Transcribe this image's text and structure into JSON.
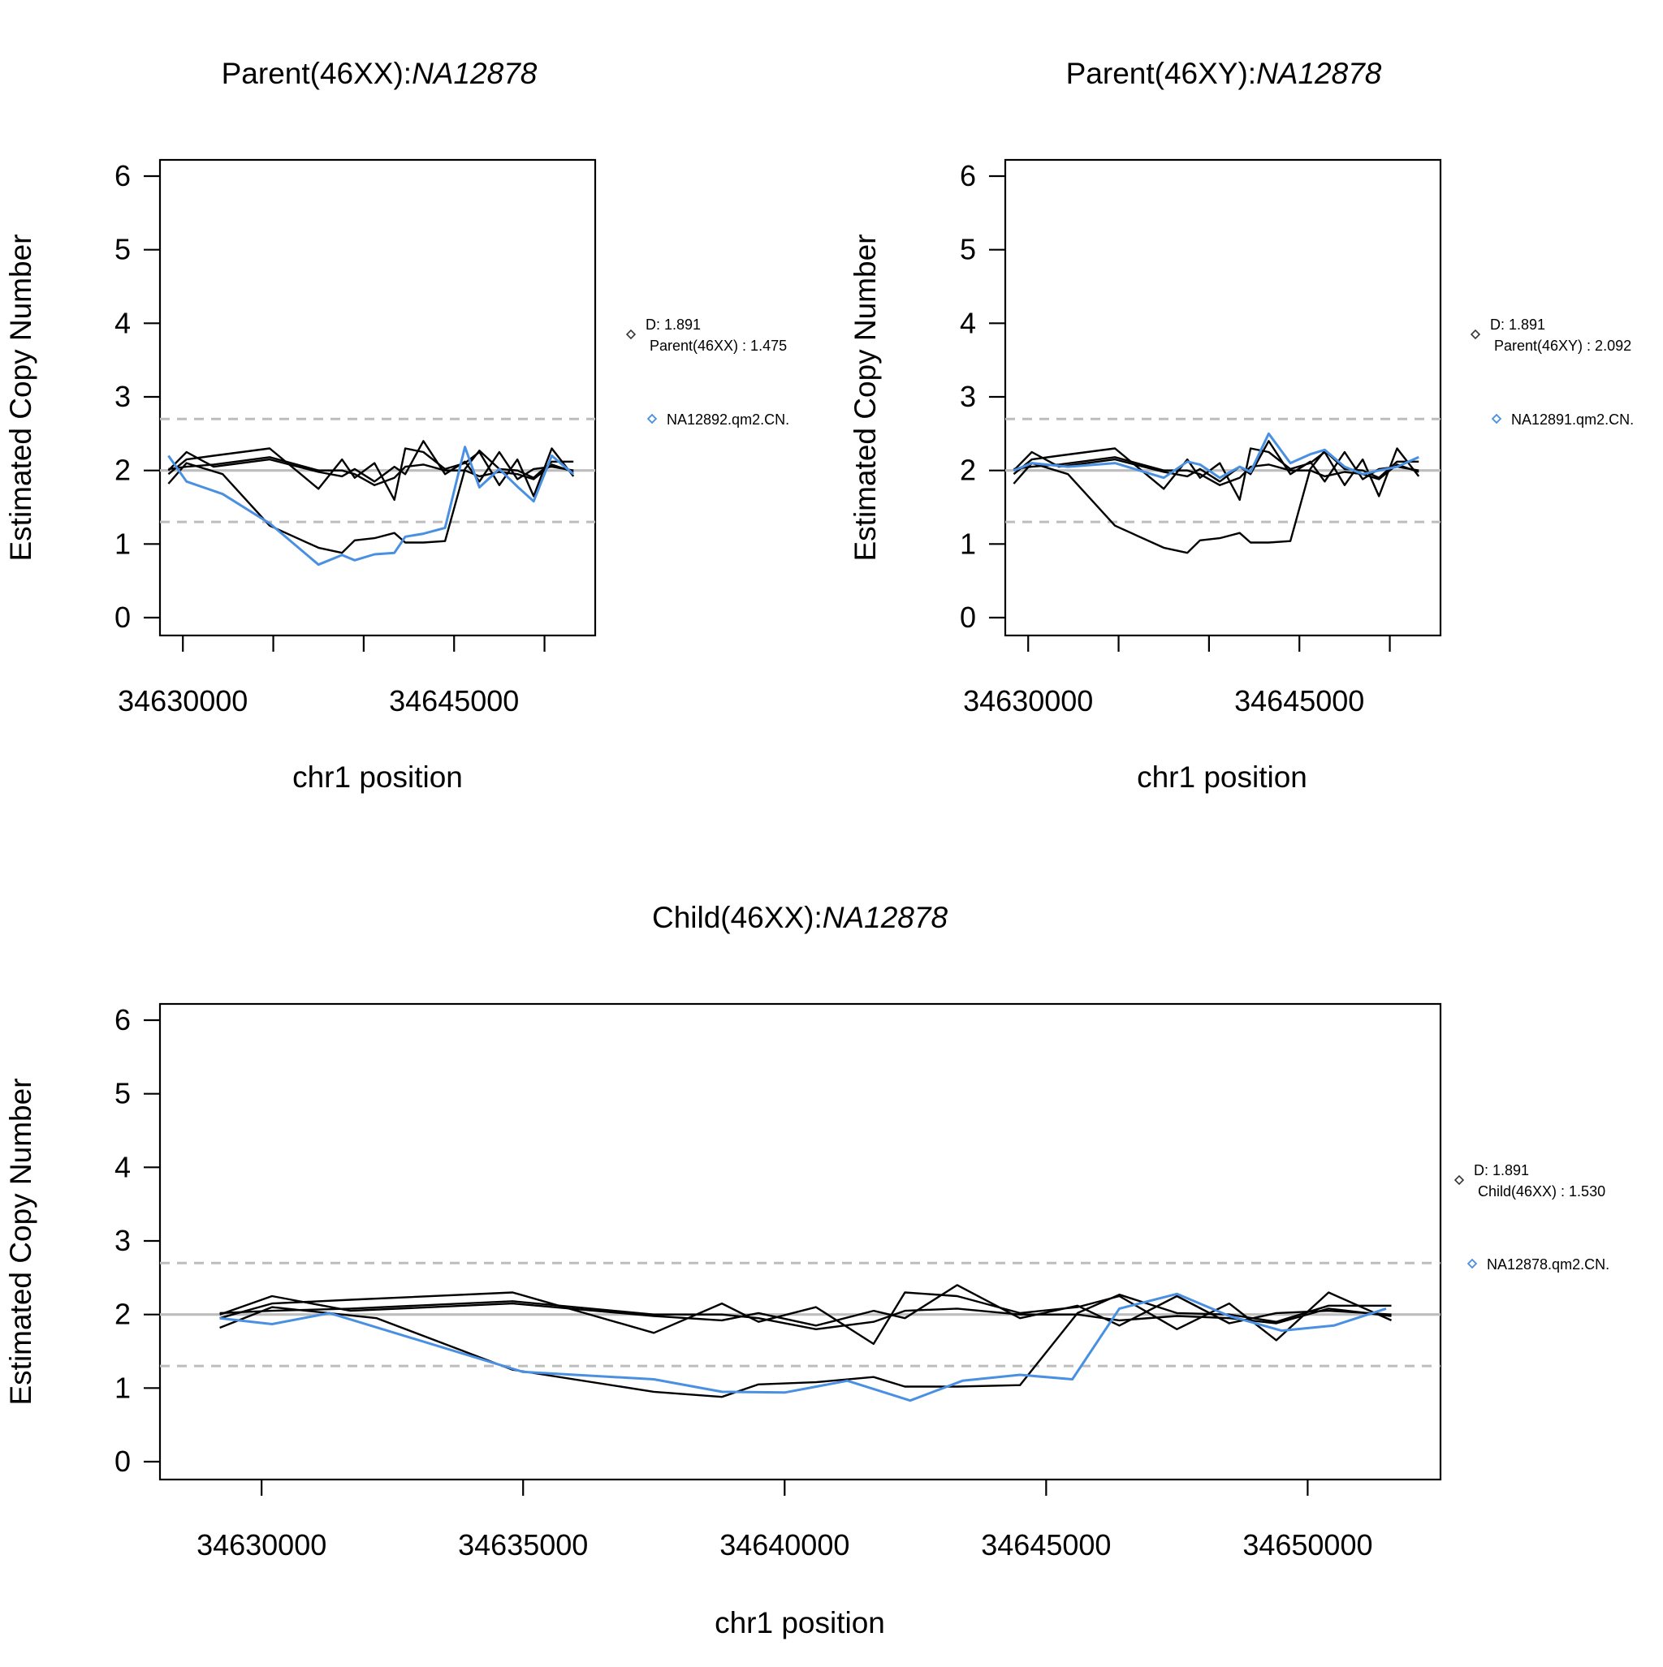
{
  "colors": {
    "control": "#000000",
    "sample": "#4a90e2",
    "reference": "#bdbdbd",
    "marker_dark": "#333333"
  },
  "chart_data": [
    {
      "type": "line",
      "title_plain": "Parent(46XX):",
      "title_italic": "NA12878",
      "xlabel": "chr1 position",
      "ylabel": "Estimated Copy Number",
      "xlim": [
        34627700,
        34652400
      ],
      "ylim": [
        0,
        6
      ],
      "xticks": [
        34630000,
        34635000,
        34640000,
        34645000,
        34650000
      ],
      "xtick_labels": [
        "34630000",
        "34645000"
      ],
      "yticks": [
        0,
        1,
        2,
        3,
        4,
        5,
        6
      ],
      "ref_line": 2,
      "thresholds": [
        1.3,
        2.7
      ],
      "legend": {
        "d_label": "D: 1.891",
        "d_line2": "Parent(46XX) : 1.475",
        "sample_label": "NA12892.qm2.CN."
      },
      "controls": [
        {
          "x": [
            34629200,
            34630200,
            34631700,
            34634800,
            34637500,
            34638800,
            34639500,
            34640600,
            34641700,
            34642300,
            34643300,
            34644500,
            34645600,
            34646400,
            34647500,
            34648500,
            34649400,
            34650400,
            34651600
          ],
          "y": [
            1.95,
            2.15,
            2.2,
            2.3,
            1.75,
            2.15,
            1.9,
            2.1,
            1.6,
            2.3,
            2.25,
            2.02,
            2.1,
            2.25,
            1.8,
            2.15,
            1.65,
            2.3,
            1.92
          ]
        },
        {
          "x": [
            34629200,
            34630200,
            34632200,
            34634800,
            34637500,
            34638800,
            34639500,
            34640600,
            34641700,
            34642300,
            34643300,
            34644500,
            34645600,
            34646400,
            34647500,
            34648500,
            34649400,
            34650400,
            34651600
          ],
          "y": [
            1.82,
            2.1,
            1.95,
            1.25,
            0.95,
            0.88,
            1.05,
            1.08,
            1.15,
            1.02,
            1.02,
            1.04,
            2.02,
            2.27,
            2.02,
            2.0,
            1.9,
            2.12,
            2.12
          ]
        },
        {
          "x": [
            34629200,
            34630200,
            34631700,
            34634800,
            34637500,
            34638800,
            34639500,
            34640600,
            34641700,
            34642300,
            34643300,
            34644500,
            34645600,
            34646400,
            34647500,
            34648500,
            34649400,
            34650400,
            34651600
          ],
          "y": [
            2.0,
            2.25,
            2.05,
            2.15,
            1.98,
            1.92,
            2.02,
            1.85,
            2.05,
            1.95,
            2.4,
            1.95,
            2.12,
            1.85,
            2.25,
            1.88,
            2.02,
            2.05,
            2.0
          ]
        },
        {
          "x": [
            34629200,
            34630200,
            34631700,
            34634800,
            34637500,
            34638800,
            34639500,
            34640600,
            34641700,
            34642300,
            34643300,
            34644500,
            34645600,
            34646400,
            34647500,
            34648500,
            34649400,
            34650400,
            34651600
          ],
          "y": [
            2.02,
            2.05,
            2.08,
            2.18,
            2.0,
            2.0,
            1.95,
            1.8,
            1.9,
            2.05,
            2.08,
            2.0,
            2.0,
            1.92,
            1.98,
            1.95,
            1.88,
            2.08,
            1.98
          ]
        }
      ],
      "sample": {
        "x": [
          34629200,
          34630200,
          34632200,
          34634800,
          34637500,
          34638800,
          34639500,
          34640600,
          34641700,
          34642300,
          34643300,
          34644500,
          34645600,
          34646400,
          34647500,
          34648500,
          34649400,
          34650400,
          34651600
        ],
        "y": [
          2.2,
          1.85,
          1.68,
          1.28,
          0.72,
          0.85,
          0.78,
          0.86,
          0.88,
          1.1,
          1.14,
          1.22,
          2.32,
          1.77,
          2.02,
          1.78,
          1.58,
          2.2,
          1.95
        ]
      }
    },
    {
      "type": "line",
      "title_plain": "Parent(46XY):",
      "title_italic": "NA12878",
      "xlabel": "chr1 position",
      "ylabel": "Estimated Copy Number",
      "xlim": [
        34627700,
        34652400
      ],
      "ylim": [
        0,
        6
      ],
      "xticks": [
        34630000,
        34635000,
        34640000,
        34645000,
        34650000
      ],
      "xtick_labels": [
        "34630000",
        "34645000"
      ],
      "yticks": [
        0,
        1,
        2,
        3,
        4,
        5,
        6
      ],
      "ref_line": 2,
      "thresholds": [
        1.3,
        2.7
      ],
      "legend": {
        "d_label": "D: 1.891",
        "d_line2": "Parent(46XY) : 2.092",
        "sample_label": "NA12891.qm2.CN."
      },
      "controls": [
        {
          "x": [
            34629200,
            34630200,
            34631700,
            34634800,
            34637500,
            34638800,
            34639500,
            34640600,
            34641700,
            34642300,
            34643300,
            34644500,
            34645600,
            34646400,
            34647500,
            34648500,
            34649400,
            34650400,
            34651600
          ],
          "y": [
            1.95,
            2.15,
            2.2,
            2.3,
            1.75,
            2.15,
            1.9,
            2.1,
            1.6,
            2.3,
            2.25,
            2.02,
            2.1,
            2.25,
            1.8,
            2.15,
            1.65,
            2.3,
            1.92
          ]
        },
        {
          "x": [
            34629200,
            34630200,
            34632200,
            34634800,
            34637500,
            34638800,
            34639500,
            34640600,
            34641700,
            34642300,
            34643300,
            34644500,
            34645600,
            34646400,
            34647500,
            34648500,
            34649400,
            34650400,
            34651600
          ],
          "y": [
            1.82,
            2.1,
            1.95,
            1.25,
            0.95,
            0.88,
            1.05,
            1.08,
            1.15,
            1.02,
            1.02,
            1.04,
            2.02,
            2.27,
            2.02,
            2.0,
            1.9,
            2.12,
            2.12
          ]
        },
        {
          "x": [
            34629200,
            34630200,
            34631700,
            34634800,
            34637500,
            34638800,
            34639500,
            34640600,
            34641700,
            34642300,
            34643300,
            34644500,
            34645600,
            34646400,
            34647500,
            34648500,
            34649400,
            34650400,
            34651600
          ],
          "y": [
            2.0,
            2.25,
            2.05,
            2.15,
            1.98,
            1.92,
            2.02,
            1.85,
            2.05,
            1.95,
            2.4,
            1.95,
            2.12,
            1.85,
            2.25,
            1.88,
            2.02,
            2.05,
            2.0
          ]
        },
        {
          "x": [
            34629200,
            34630200,
            34631700,
            34634800,
            34637500,
            34638800,
            34639500,
            34640600,
            34641700,
            34642300,
            34643300,
            34644500,
            34645600,
            34646400,
            34647500,
            34648500,
            34649400,
            34650400,
            34651600
          ],
          "y": [
            2.02,
            2.05,
            2.08,
            2.18,
            2.0,
            2.0,
            1.95,
            1.8,
            1.9,
            2.05,
            2.08,
            2.0,
            2.0,
            1.92,
            1.98,
            1.95,
            1.88,
            2.08,
            1.98
          ]
        }
      ],
      "sample": {
        "x": [
          34629200,
          34630200,
          34632200,
          34634800,
          34637500,
          34638800,
          34639500,
          34640600,
          34641700,
          34642300,
          34643300,
          34644500,
          34645600,
          34646400,
          34647500,
          34648500,
          34649400,
          34650400,
          34651600
        ],
        "y": [
          2.0,
          2.1,
          2.05,
          2.1,
          1.9,
          2.12,
          2.08,
          1.9,
          2.05,
          1.98,
          2.5,
          2.1,
          2.22,
          2.28,
          2.05,
          1.95,
          2.0,
          2.05,
          2.18
        ]
      }
    },
    {
      "type": "line",
      "title_plain": "Child(46XX):",
      "title_italic": "NA12878",
      "xlabel": "chr1 position",
      "ylabel": "Estimated Copy Number",
      "xlim": [
        34627700,
        34652400
      ],
      "ylim": [
        0,
        6
      ],
      "xticks": [
        34630000,
        34635000,
        34640000,
        34645000,
        34650000
      ],
      "xtick_labels": [
        "34630000",
        "34635000",
        "34640000",
        "34645000",
        "34650000"
      ],
      "yticks": [
        0,
        1,
        2,
        3,
        4,
        5,
        6
      ],
      "ref_line": 2,
      "thresholds": [
        1.3,
        2.7
      ],
      "legend": {
        "d_label": "D: 1.891",
        "d_line2": "Child(46XX) : 1.530",
        "sample_label": "NA12878.qm2.CN."
      },
      "controls": [
        {
          "x": [
            34629200,
            34630200,
            34631700,
            34634800,
            34637500,
            34638800,
            34639500,
            34640600,
            34641700,
            34642300,
            34643300,
            34644500,
            34645600,
            34646400,
            34647500,
            34648500,
            34649400,
            34650400,
            34651600
          ],
          "y": [
            1.95,
            2.15,
            2.2,
            2.3,
            1.75,
            2.15,
            1.9,
            2.1,
            1.6,
            2.3,
            2.25,
            2.02,
            2.1,
            2.25,
            1.8,
            2.15,
            1.65,
            2.3,
            1.92
          ]
        },
        {
          "x": [
            34629200,
            34630200,
            34632200,
            34634800,
            34637500,
            34638800,
            34639500,
            34640600,
            34641700,
            34642300,
            34643300,
            34644500,
            34645600,
            34646400,
            34647500,
            34648500,
            34649400,
            34650400,
            34651600
          ],
          "y": [
            1.82,
            2.1,
            1.95,
            1.25,
            0.95,
            0.88,
            1.05,
            1.08,
            1.15,
            1.02,
            1.02,
            1.04,
            2.02,
            2.27,
            2.02,
            2.0,
            1.9,
            2.12,
            2.12
          ]
        },
        {
          "x": [
            34629200,
            34630200,
            34631700,
            34634800,
            34637500,
            34638800,
            34639500,
            34640600,
            34641700,
            34642300,
            34643300,
            34644500,
            34645600,
            34646400,
            34647500,
            34648500,
            34649400,
            34650400,
            34651600
          ],
          "y": [
            2.0,
            2.25,
            2.05,
            2.15,
            1.98,
            1.92,
            2.02,
            1.85,
            2.05,
            1.95,
            2.4,
            1.95,
            2.12,
            1.85,
            2.25,
            1.88,
            2.02,
            2.05,
            2.0
          ]
        },
        {
          "x": [
            34629200,
            34630200,
            34631700,
            34634800,
            34637500,
            34638800,
            34639500,
            34640600,
            34641700,
            34642300,
            34643300,
            34644500,
            34645600,
            34646400,
            34647500,
            34648500,
            34649400,
            34650400,
            34651600
          ],
          "y": [
            2.02,
            2.05,
            2.08,
            2.18,
            2.0,
            2.0,
            1.95,
            1.8,
            1.9,
            2.05,
            2.08,
            2.0,
            2.0,
            1.92,
            1.98,
            1.95,
            1.88,
            2.08,
            1.98
          ]
        }
      ],
      "sample": {
        "x": [
          34629200,
          34630200,
          34631300,
          34635000,
          34637500,
          34638800,
          34640000,
          34641200,
          34642400,
          34643400,
          34644500,
          34645500,
          34646400,
          34647500,
          34648500,
          34649500,
          34650500,
          34651500
        ],
        "y": [
          1.95,
          1.87,
          2.02,
          1.22,
          1.12,
          0.95,
          0.94,
          1.1,
          0.83,
          1.1,
          1.18,
          1.12,
          2.08,
          2.28,
          1.98,
          1.78,
          1.85,
          2.08
        ]
      }
    }
  ]
}
